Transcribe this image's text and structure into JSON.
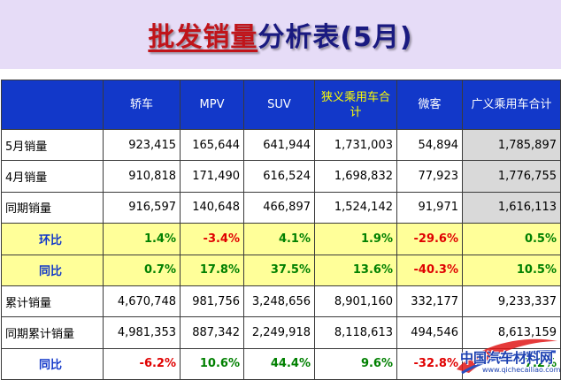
{
  "title": {
    "part1": "批发销量",
    "part2": "分析表(5月)"
  },
  "colors": {
    "header_bg": "#1238c9",
    "title_band": "#e6dcf7",
    "pct_row_bg": "#ffff99",
    "positive": "#008000",
    "negative": "#e00000"
  },
  "table": {
    "headers": [
      "",
      "轿车",
      "MPV",
      "SUV",
      "狭义乘用车合计",
      "微客",
      "广义乘用车合计"
    ],
    "rows": [
      {
        "label": "5月销量",
        "cells": [
          "923,415",
          "165,644",
          "641,944",
          "1,731,003",
          "54,894",
          "1,785,897"
        ]
      },
      {
        "label": "4月销量",
        "cells": [
          "910,818",
          "171,490",
          "616,524",
          "1,698,832",
          "77,923",
          "1,776,755"
        ]
      },
      {
        "label": "同期销量",
        "cells": [
          "916,597",
          "140,648",
          "466,897",
          "1,524,142",
          "91,971",
          "1,616,113"
        ]
      },
      {
        "label": "环比",
        "cells": [
          "1.4%",
          "-3.4%",
          "4.1%",
          "1.9%",
          "-29.6%",
          "0.5%"
        ]
      },
      {
        "label": "同比",
        "cells": [
          "0.7%",
          "17.8%",
          "37.5%",
          "13.6%",
          "-40.3%",
          "10.5%"
        ]
      },
      {
        "label": "累计销量",
        "cells": [
          "4,670,748",
          "981,756",
          "3,248,656",
          "8,901,160",
          "332,177",
          "9,233,337"
        ]
      },
      {
        "label": "同期累计销量",
        "cells": [
          "4,981,353",
          "887,342",
          "2,249,918",
          "8,118,613",
          "494,546",
          "8,613,159"
        ]
      },
      {
        "label": "同比",
        "cells": [
          "-6.2%",
          "10.6%",
          "44.4%",
          "9.6%",
          "-32.8%",
          "7.2%"
        ]
      }
    ]
  },
  "watermark": {
    "text": "中国汽车材料网",
    "url": "www.qichecailiao.com"
  }
}
